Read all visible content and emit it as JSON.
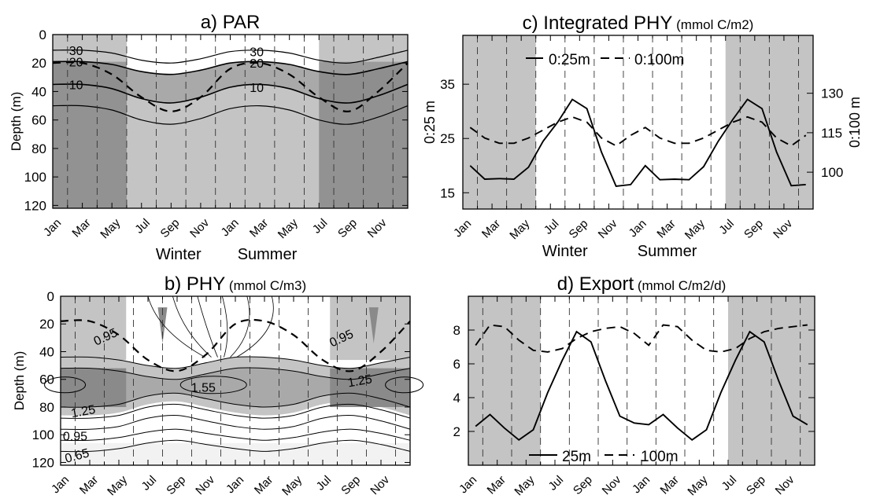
{
  "months": [
    "Jan",
    "Mar",
    "May",
    "Jul",
    "Sep",
    "Nov",
    "Jan",
    "Mar",
    "May",
    "Jul",
    "Sep",
    "Nov"
  ],
  "colors": {
    "light_gray": "#c4c4c4",
    "mid_gray": "#a9a9a9",
    "dark_gray": "#8a8a8a",
    "lightest_gray": "#e8e8e8"
  },
  "chart_data": [
    {
      "id": "a",
      "type": "heatmap",
      "title": "a) PAR",
      "ylabel": "Depth (m)",
      "ylim": [
        0,
        122
      ],
      "yticks": [
        "0",
        "20",
        "40",
        "60",
        "80",
        "100",
        "120"
      ],
      "season_labels": [
        "Winter",
        "Summer"
      ],
      "contour_labels": [
        "30",
        "20",
        "10",
        "30",
        "20",
        "10"
      ],
      "mld_depth": [
        20,
        20,
        28,
        44,
        54,
        44,
        24,
        20,
        28,
        44,
        54,
        40,
        20
      ],
      "contours": {
        "30": [
          11,
          11,
          13,
          18,
          20,
          17,
          12,
          11,
          13,
          18,
          20,
          16,
          11
        ],
        "20": [
          19,
          19,
          21,
          26,
          28,
          25,
          20,
          19,
          21,
          26,
          28,
          24,
          19
        ],
        "10": [
          35,
          35,
          38,
          45,
          48,
          44,
          37,
          35,
          38,
          45,
          48,
          43,
          35
        ],
        "5": [
          50,
          50,
          53,
          60,
          63,
          59,
          52,
          50,
          53,
          60,
          63,
          58,
          50
        ]
      }
    },
    {
      "id": "b",
      "type": "heatmap",
      "title": "b) PHY",
      "title_unit": "(mmol C/m3)",
      "ylabel": "Depth (m)",
      "ylim": [
        0,
        122
      ],
      "yticks": [
        "0",
        "20",
        "40",
        "60",
        "80",
        "100",
        "120"
      ],
      "contour_labels": [
        "0.95",
        "0.95",
        "1.25",
        "1.55",
        "1.25",
        "0.95",
        "0.65"
      ],
      "mld_depth": [
        18,
        18,
        28,
        46,
        54,
        42,
        20,
        18,
        28,
        46,
        54,
        40,
        18
      ]
    },
    {
      "id": "c",
      "type": "line",
      "title": "c) Integrated PHY",
      "title_unit": "(mmol C/m2)",
      "ylabel": "0:25 m",
      "y2label": "0:100 m",
      "ylim": [
        12,
        44
      ],
      "yticks": [
        "15",
        "25",
        "35"
      ],
      "y2lim": [
        86,
        152
      ],
      "y2ticks": [
        "100",
        "115",
        "130"
      ],
      "season_labels": [
        "Winter",
        "Summer"
      ],
      "series": [
        {
          "name": "0:25m",
          "axis": "left",
          "values": [
            20,
            17.5,
            17.6,
            17.5,
            19.7,
            24.5,
            28,
            32.2,
            30.5,
            22.5,
            16.2,
            16.5,
            20,
            17.4,
            17.5,
            17.4,
            19.8,
            24.5,
            28.5,
            32.2,
            30.5,
            22.5,
            16.3,
            16.5
          ]
        },
        {
          "name": "0:100m",
          "axis": "right",
          "values": [
            117,
            113,
            111,
            111,
            113,
            116,
            119,
            121,
            119,
            113,
            110,
            114,
            117,
            113,
            111,
            111,
            113,
            116,
            119,
            121,
            119,
            113,
            110,
            114
          ]
        }
      ]
    },
    {
      "id": "d",
      "type": "line",
      "title": "d) Export",
      "title_unit": "(mmol C/m2/d)",
      "ylim": [
        0,
        10
      ],
      "yticks": [
        "2",
        "4",
        "6",
        "8"
      ],
      "series": [
        {
          "name": "25m",
          "values": [
            2.3,
            3.0,
            2.2,
            1.5,
            2.1,
            4.3,
            6.2,
            7.9,
            7.3,
            5.0,
            2.9,
            2.5,
            2.4,
            3.0,
            2.2,
            1.5,
            2.1,
            4.3,
            6.2,
            7.9,
            7.3,
            5.0,
            2.9,
            2.4
          ]
        },
        {
          "name": "100m",
          "values": [
            7.1,
            8.3,
            8.2,
            7.4,
            6.8,
            6.7,
            6.9,
            7.5,
            7.9,
            8.1,
            8.2,
            7.8,
            7.1,
            8.3,
            8.2,
            7.4,
            6.8,
            6.7,
            6.9,
            7.5,
            7.9,
            8.1,
            8.2,
            8.3
          ]
        }
      ]
    }
  ]
}
